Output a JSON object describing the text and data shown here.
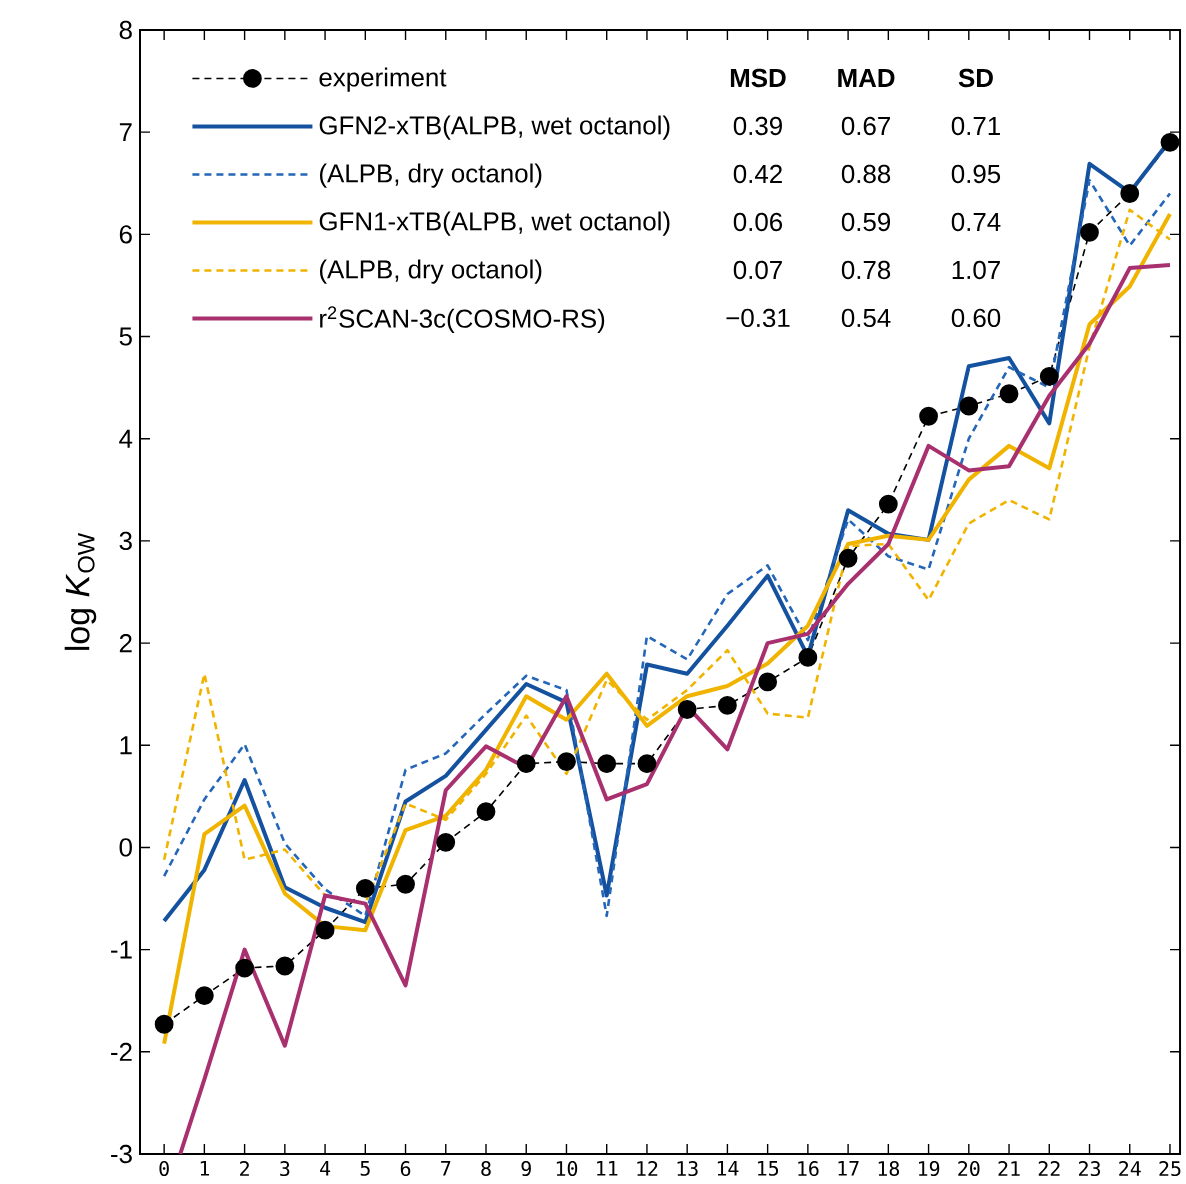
{
  "chart_data": {
    "type": "line",
    "ylabel": "log *K*$_{OW}$",
    "x": [
      0,
      1,
      2,
      3,
      4,
      5,
      6,
      7,
      8,
      9,
      10,
      11,
      12,
      13,
      14,
      15,
      16,
      17,
      18,
      19,
      20,
      21,
      22,
      23,
      24,
      25
    ],
    "xlim": [
      -0.6,
      25.25
    ],
    "xticks": [
      0,
      1,
      2,
      3,
      4,
      5,
      6,
      7,
      8,
      9,
      10,
      11,
      12,
      13,
      14,
      15,
      16,
      17,
      18,
      19,
      20,
      21,
      22,
      23,
      24,
      25
    ],
    "ylim": [
      -3,
      8
    ],
    "yticks": [
      -3,
      -2,
      -1,
      0,
      1,
      2,
      3,
      4,
      5,
      6,
      7,
      8
    ],
    "grid": false,
    "legend": "top left",
    "series": [
      {
        "name": "experiment",
        "color": "#000000",
        "line_style": "dashed",
        "marker": "circle",
        "values": [
          -1.73,
          -1.45,
          -1.18,
          -1.16,
          -0.81,
          -0.4,
          -0.36,
          0.05,
          0.35,
          0.82,
          0.84,
          0.82,
          0.82,
          1.35,
          1.39,
          1.62,
          1.86,
          2.83,
          3.36,
          4.22,
          4.32,
          4.44,
          4.61,
          6.02,
          6.4,
          6.9
        ]
      },
      {
        "name": "GFN2-xTB(ALPB, wet octanol)",
        "color": "#1452a0",
        "line_style": "solid",
        "marker": "none",
        "values": [
          -0.72,
          -0.22,
          0.66,
          -0.39,
          -0.59,
          -0.73,
          0.45,
          0.7,
          1.15,
          1.6,
          1.42,
          -0.47,
          1.79,
          1.7,
          2.17,
          2.66,
          1.87,
          3.3,
          3.07,
          3.01,
          4.71,
          4.79,
          4.15,
          6.69,
          6.41,
          6.92
        ]
      },
      {
        "name": "(ALPB, dry octanol)",
        "color": "#2466b8",
        "line_style": "dashed",
        "marker": "none",
        "values": [
          -0.28,
          0.47,
          1.01,
          0.04,
          -0.41,
          -0.67,
          0.76,
          0.92,
          1.31,
          1.68,
          1.54,
          -0.67,
          2.07,
          1.84,
          2.48,
          2.76,
          2.03,
          3.21,
          2.85,
          2.72,
          4.0,
          4.7,
          4.5,
          6.53,
          5.89,
          6.4
        ]
      },
      {
        "name": "GFN1-xTB(ALPB, wet octanol)",
        "color": "#f0b400",
        "line_style": "solid",
        "marker": "none",
        "values": [
          -1.92,
          0.13,
          0.41,
          -0.45,
          -0.77,
          -0.81,
          0.17,
          0.31,
          0.76,
          1.48,
          1.25,
          1.7,
          1.19,
          1.48,
          1.58,
          1.8,
          2.17,
          2.97,
          3.05,
          3.01,
          3.6,
          3.93,
          3.71,
          5.12,
          5.49,
          6.2
        ]
      },
      {
        "name": "(ALPB, dry octanol)",
        "color": "#f0b400",
        "line_style": "dashed",
        "marker": "none",
        "values": [
          -0.12,
          1.7,
          -0.12,
          -0.02,
          -0.47,
          -0.55,
          0.43,
          0.27,
          0.72,
          1.29,
          0.72,
          1.64,
          1.25,
          1.54,
          1.93,
          1.31,
          1.27,
          2.95,
          2.97,
          2.42,
          3.17,
          3.4,
          3.21,
          4.9,
          6.24,
          5.95
        ]
      },
      {
        "name": "r$^{2}$SCAN-3c(COSMO-RS)",
        "color": "#a8306f",
        "line_style": "solid",
        "marker": "none",
        "x": [
          0.4,
          1,
          2,
          3,
          4,
          5,
          6,
          7,
          8,
          9,
          10,
          11,
          12,
          13,
          14,
          15,
          16,
          17,
          18,
          19,
          20,
          21,
          22,
          23,
          24,
          25
        ],
        "values": [
          -3.0,
          -2.27,
          -1.0,
          -1.94,
          -0.47,
          -0.55,
          -1.35,
          0.56,
          0.99,
          0.78,
          1.48,
          0.47,
          0.62,
          1.38,
          0.96,
          2.0,
          2.09,
          2.58,
          2.97,
          3.93,
          3.69,
          3.73,
          4.42,
          4.93,
          5.67,
          5.7
        ]
      }
    ],
    "annotations": [
      "MSD",
      "MAD",
      "SD",
      "0.39",
      "0.67",
      "0.71",
      "0.42",
      "0.88",
      "0.95",
      "0.06",
      "0.59",
      "0.74",
      "0.07",
      "0.78",
      "1.07",
      "−0.31",
      "0.54",
      "0.60"
    ]
  }
}
